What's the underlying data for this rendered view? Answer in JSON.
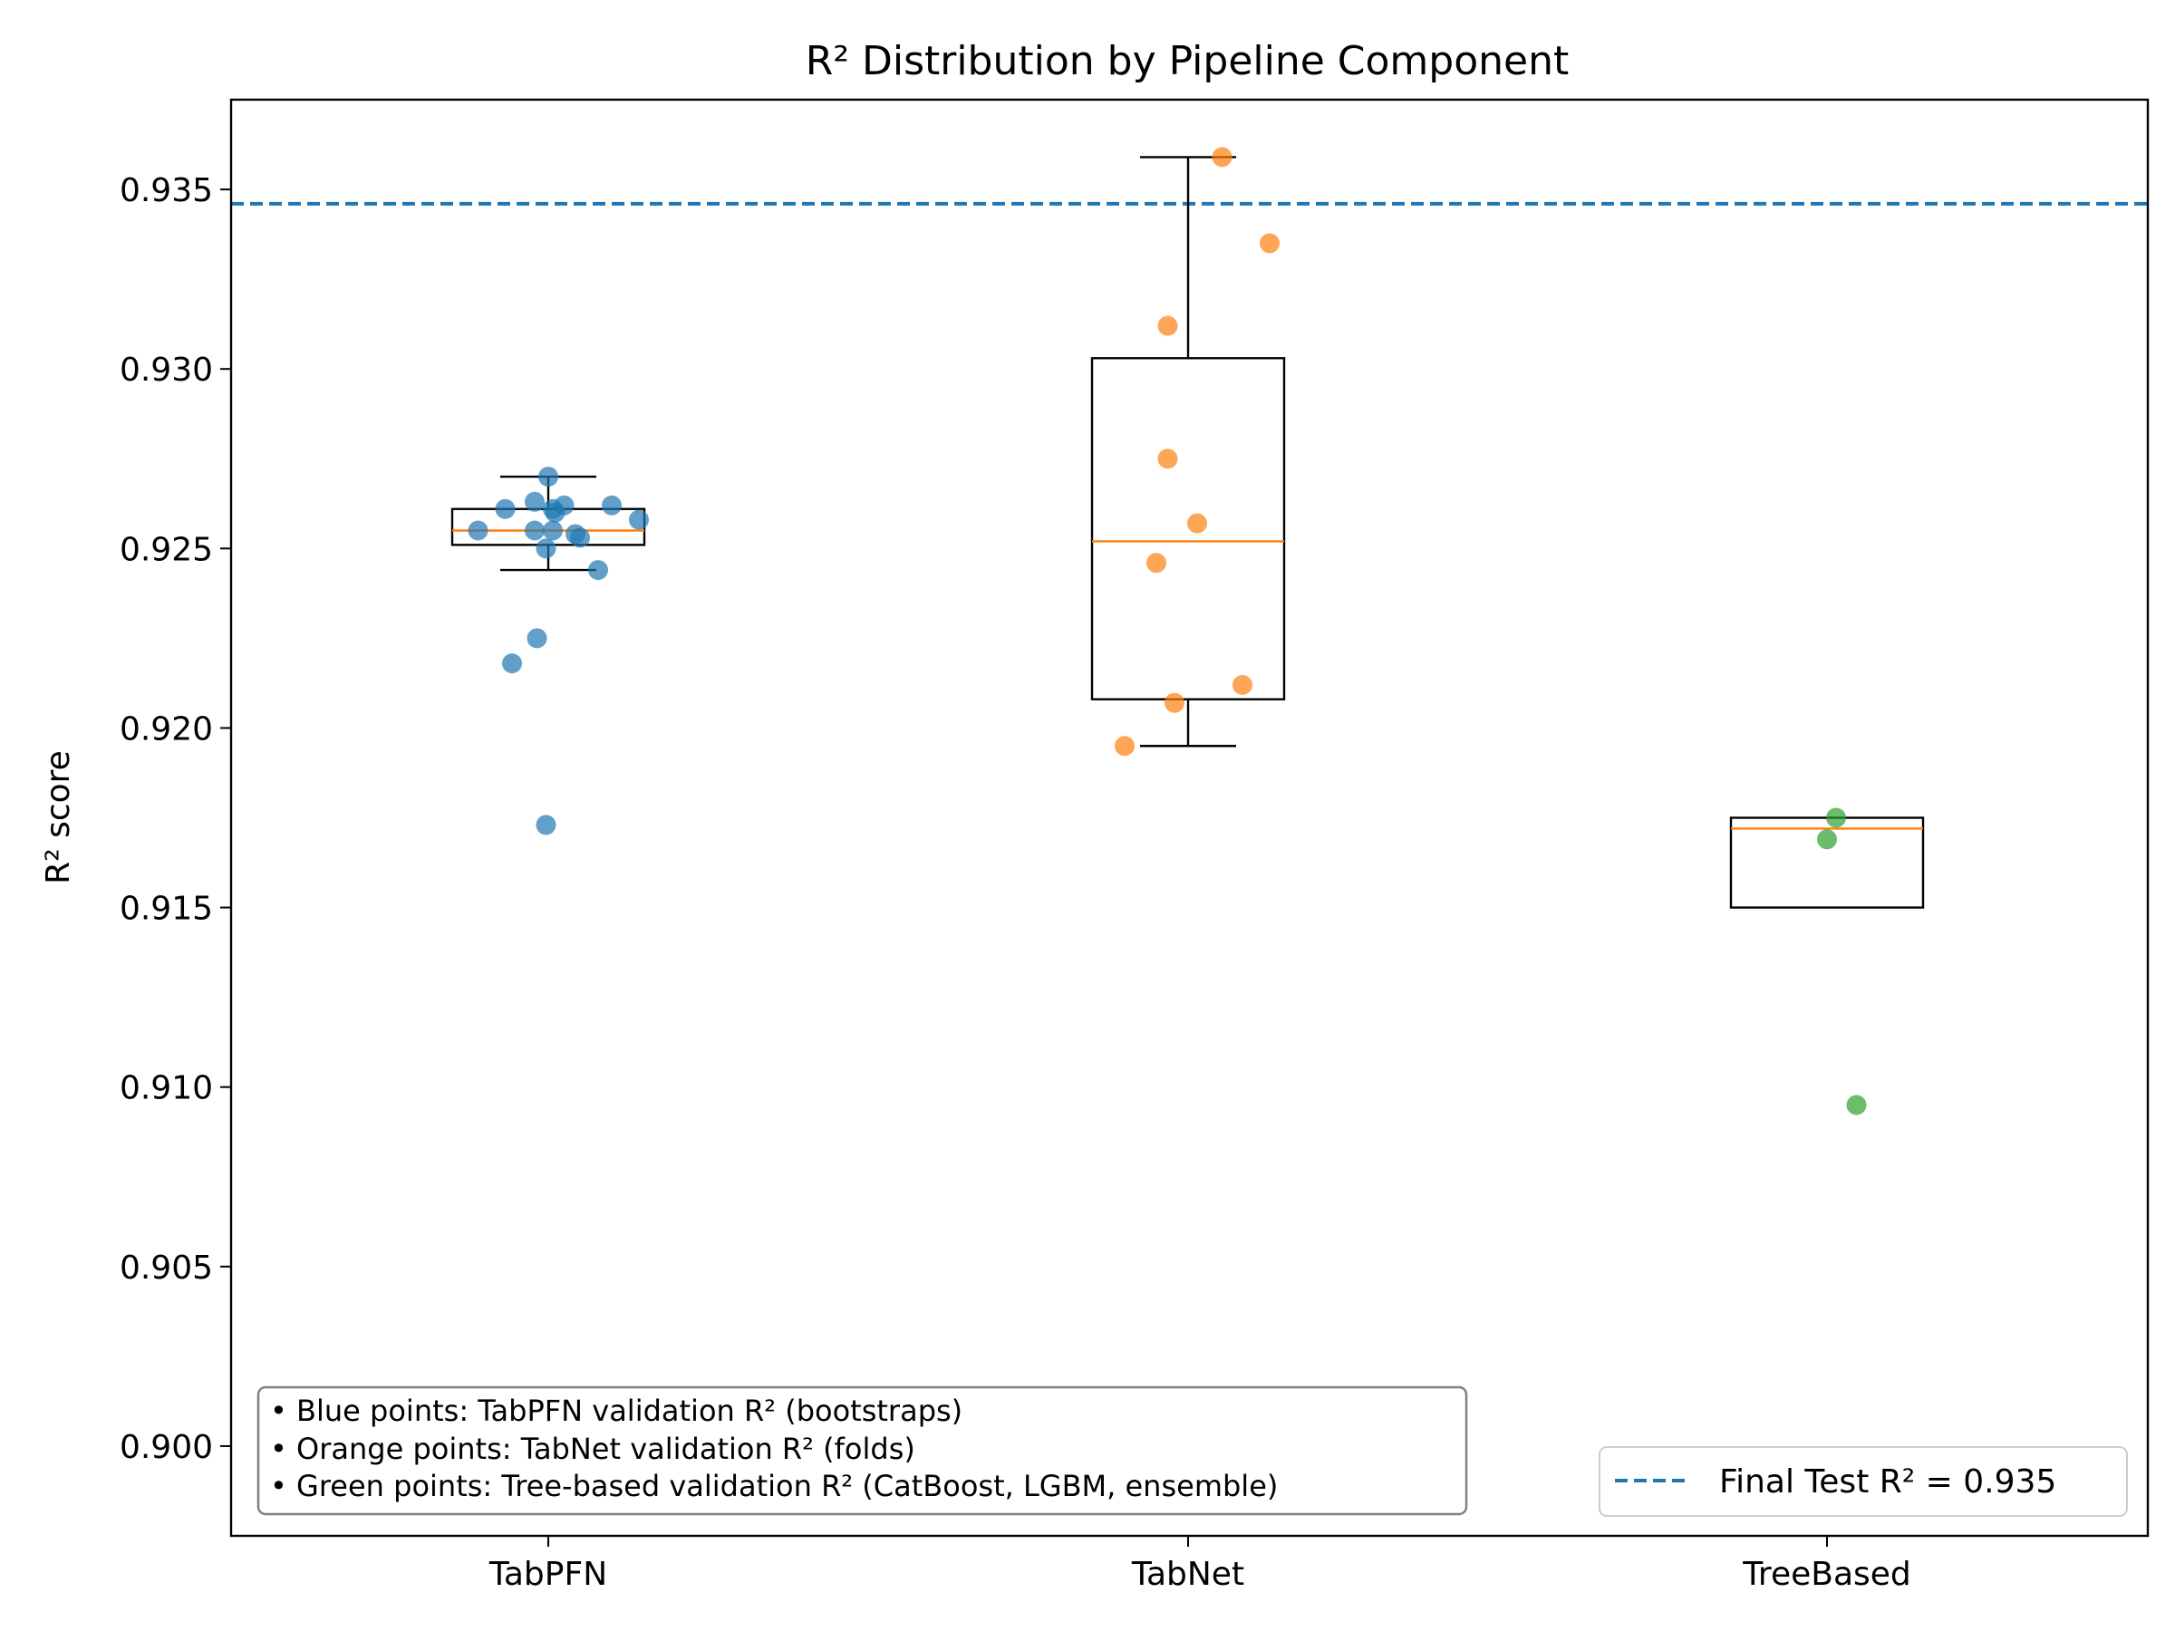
{
  "chart_data": {
    "type": "box",
    "title": "R² Distribution by Pipeline Component",
    "ylabel": "R² score",
    "xlabel": "",
    "ylim": [
      0.8975,
      0.9375
    ],
    "yticks": [
      "0.900",
      "0.905",
      "0.910",
      "0.915",
      "0.920",
      "0.925",
      "0.930",
      "0.935"
    ],
    "categories": [
      "TabPFN",
      "TabNet",
      "TreeBased"
    ],
    "colors": {
      "TabPFN": "#1f77b4",
      "TabNet": "#ff7f0e",
      "TreeBased": "#2ca02c",
      "median": "#ff7f0e",
      "reference": "#1f77b4"
    },
    "boxes": [
      {
        "category": "TabPFN",
        "whisker_low": 0.9244,
        "q1": 0.9251,
        "median": 0.9255,
        "q3": 0.9261,
        "whisker_high": 0.927
      },
      {
        "category": "TabNet",
        "whisker_low": 0.9195,
        "q1": 0.9208,
        "median": 0.9252,
        "q3": 0.9303,
        "whisker_high": 0.9359
      },
      {
        "category": "TreeBased",
        "whisker_low": null,
        "q1": 0.915,
        "median": 0.9172,
        "q3": 0.9175,
        "whisker_high": null
      }
    ],
    "series": [
      {
        "category": "TabPFN",
        "points": [
          {
            "x": 0.0,
            "y": 0.927
          },
          {
            "x": -0.06,
            "y": 0.9263
          },
          {
            "x": -0.19,
            "y": 0.9261
          },
          {
            "x": 0.02,
            "y": 0.9261
          },
          {
            "x": 0.07,
            "y": 0.9262
          },
          {
            "x": 0.28,
            "y": 0.9262
          },
          {
            "x": 0.03,
            "y": 0.926
          },
          {
            "x": 0.4,
            "y": 0.9258
          },
          {
            "x": -0.31,
            "y": 0.9255
          },
          {
            "x": -0.06,
            "y": 0.9255
          },
          {
            "x": 0.02,
            "y": 0.9255
          },
          {
            "x": 0.12,
            "y": 0.9254
          },
          {
            "x": 0.14,
            "y": 0.9253
          },
          {
            "x": -0.01,
            "y": 0.925
          },
          {
            "x": 0.22,
            "y": 0.9244
          },
          {
            "x": -0.05,
            "y": 0.9225
          },
          {
            "x": -0.16,
            "y": 0.9218
          },
          {
            "x": -0.01,
            "y": 0.9173
          }
        ]
      },
      {
        "category": "TabNet",
        "points": [
          {
            "x": 0.15,
            "y": 0.9359
          },
          {
            "x": 0.36,
            "y": 0.9335
          },
          {
            "x": -0.09,
            "y": 0.9312
          },
          {
            "x": -0.09,
            "y": 0.9275
          },
          {
            "x": 0.04,
            "y": 0.9257
          },
          {
            "x": -0.14,
            "y": 0.9246
          },
          {
            "x": -0.06,
            "y": 0.9207
          },
          {
            "x": 0.24,
            "y": 0.9212
          },
          {
            "x": -0.28,
            "y": 0.9195
          }
        ]
      },
      {
        "category": "TreeBased",
        "points": [
          {
            "x": 0.04,
            "y": 0.9175
          },
          {
            "x": 0.0,
            "y": 0.9169
          },
          {
            "x": 0.13,
            "y": 0.9095
          }
        ]
      }
    ],
    "reference_line": {
      "value": 0.9346,
      "style": "dashed",
      "label": "Final Test R² = 0.935"
    },
    "legend_placement": "bottom-right",
    "grid": false,
    "annotation_lines": [
      "• Blue points: TabPFN validation R² (bootstraps)",
      "• Orange points: TabNet validation R² (folds)",
      "• Green points: Tree-based validation R² (CatBoost, LGBM, ensemble)"
    ]
  }
}
